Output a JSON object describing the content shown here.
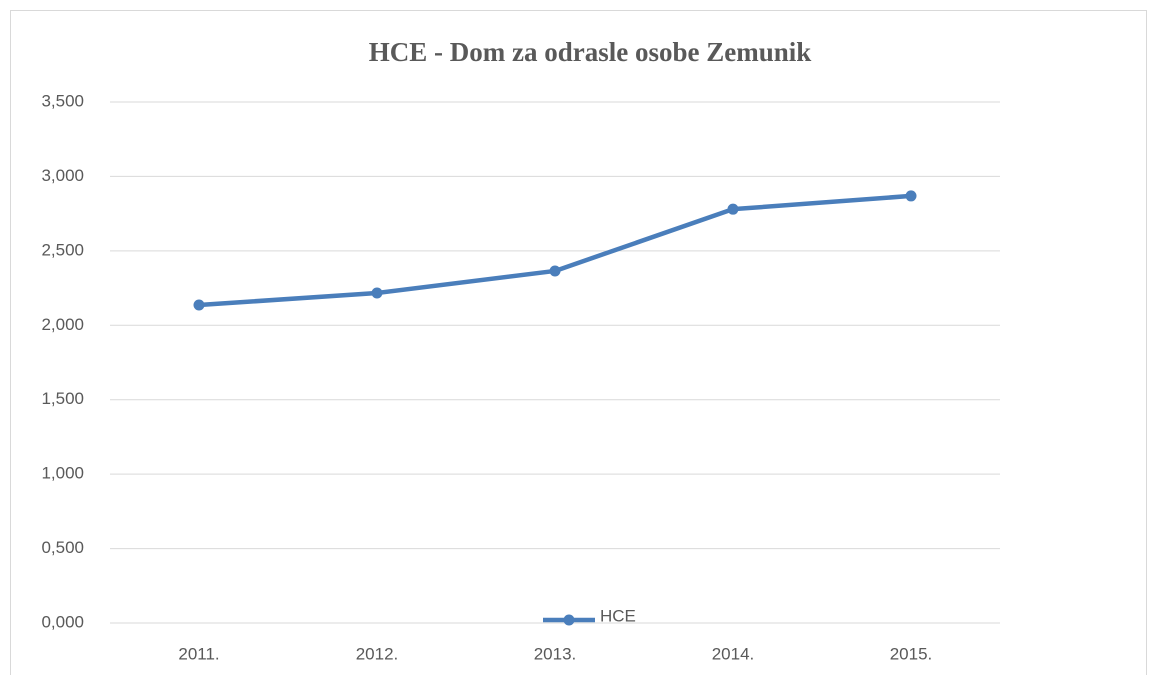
{
  "chart_data": {
    "type": "line",
    "title": "HCE - Dom za odrasle osobe Zemunik",
    "categories": [
      "2011.",
      "2012.",
      "2013.",
      "2014.",
      "2015."
    ],
    "series": [
      {
        "name": "HCE",
        "color": "#4a7ebb",
        "values": [
          2.136,
          2.217,
          2.365,
          2.78,
          2.869
        ]
      }
    ],
    "ylim": [
      0,
      3.5
    ],
    "yticks": [
      {
        "value": 0,
        "label": "0,000"
      },
      {
        "value": 0.5,
        "label": "0,500"
      },
      {
        "value": 1,
        "label": "1,000"
      },
      {
        "value": 1.5,
        "label": "1,500"
      },
      {
        "value": 2,
        "label": "2,000"
      },
      {
        "value": 2.5,
        "label": "2,500"
      },
      {
        "value": 3,
        "label": "3,000"
      },
      {
        "value": 3.5,
        "label": "3,500"
      }
    ],
    "grid": true,
    "legend": "bottom"
  }
}
